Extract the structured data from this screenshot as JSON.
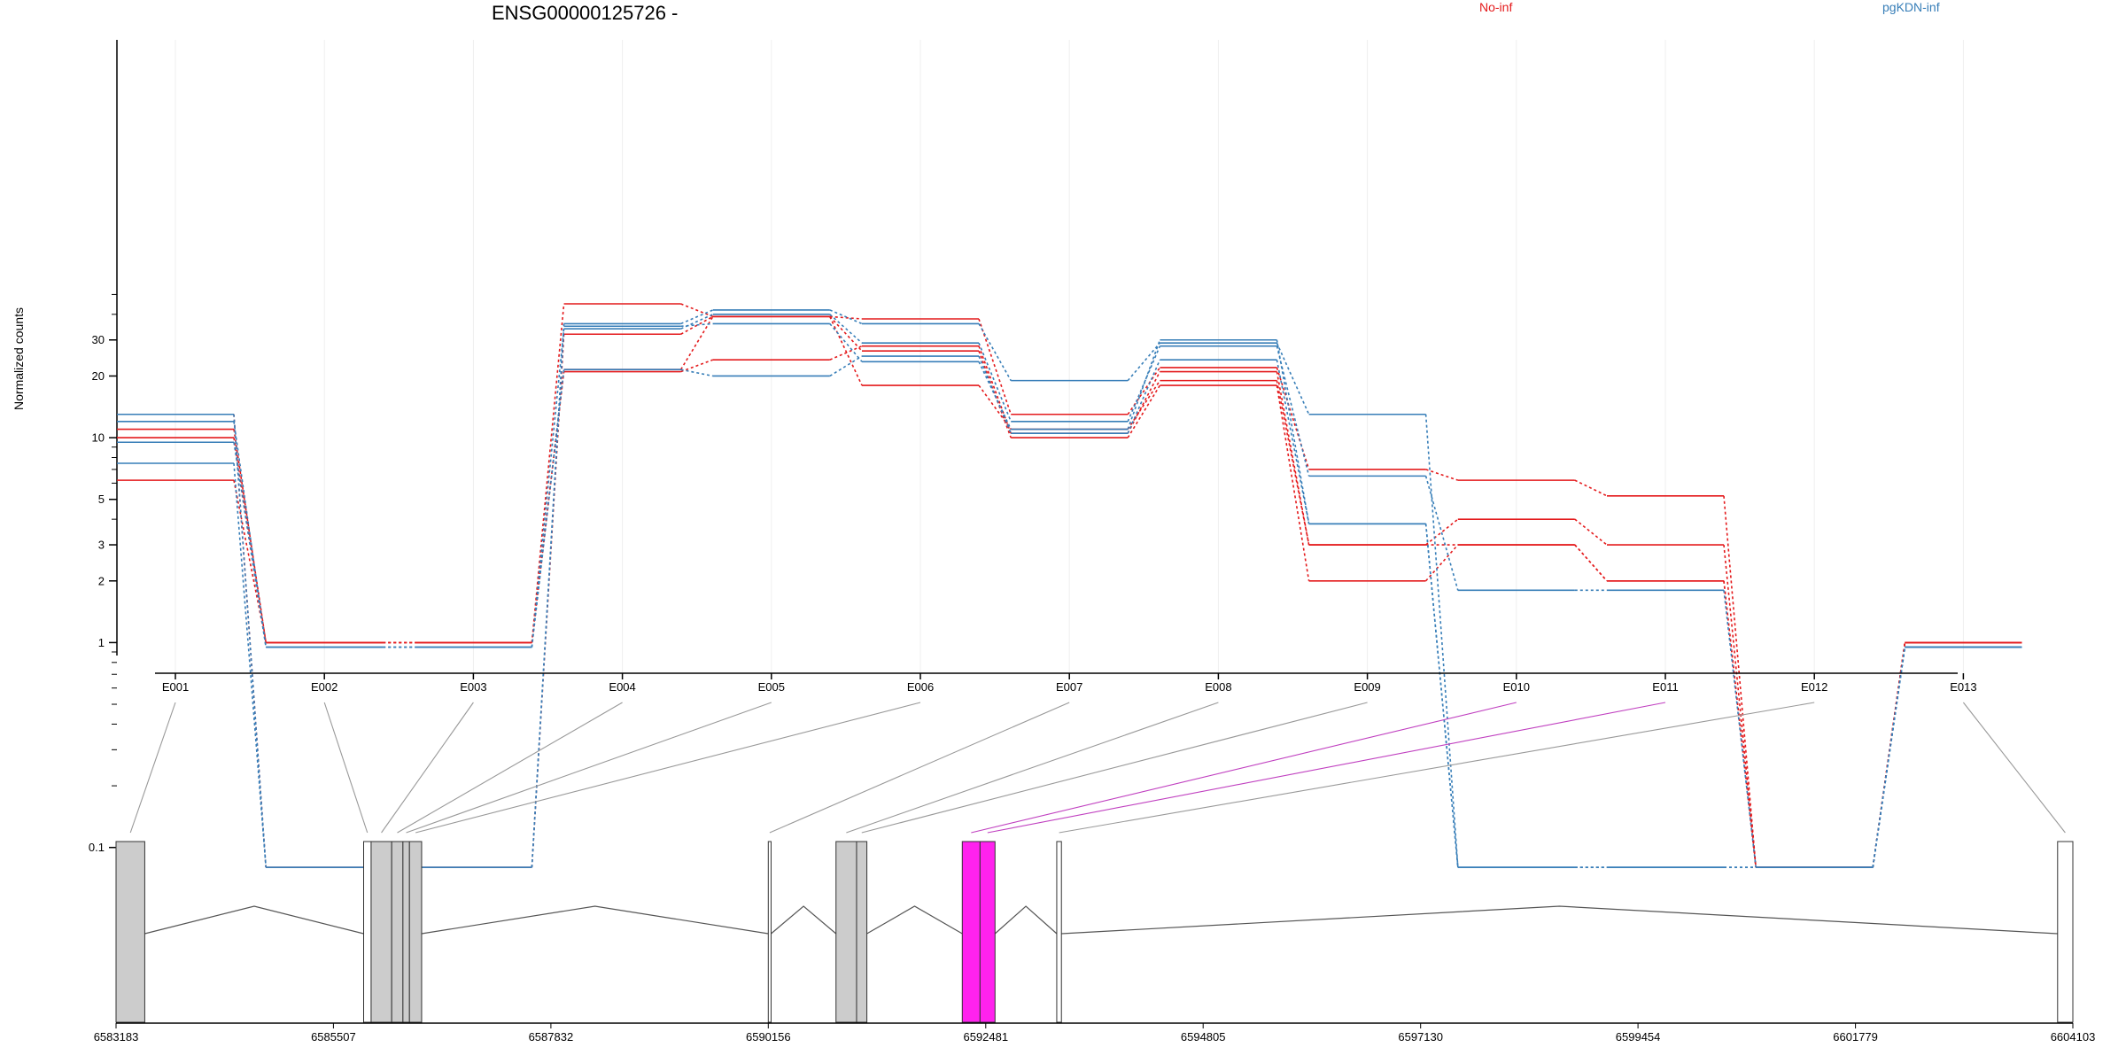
{
  "chart_data": {
    "type": "line",
    "title": "ENSG00000125726 -",
    "ylabel": "Normalized counts",
    "xlabel": "",
    "y_scale": "log",
    "y_ticks": [
      0.1,
      1,
      2,
      3,
      5,
      10,
      20,
      30
    ],
    "y_tick_labels": [
      "0.1",
      "1",
      "2",
      "3",
      "5",
      "10",
      "20",
      "30"
    ],
    "legend_placement": "top-right",
    "categories": [
      "E001",
      "E002",
      "E003",
      "E004",
      "E005",
      "E006",
      "E007",
      "E008",
      "E009",
      "E010",
      "E011",
      "E012",
      "E013"
    ],
    "groups": [
      {
        "name": "No-inf",
        "color": "#e41a1c"
      },
      {
        "name": "pgKDN-inf",
        "color": "#377eb8"
      }
    ],
    "series": [
      {
        "group": "No-inf",
        "values": [
          11,
          1,
          1,
          45,
          39,
          38,
          13,
          22,
          7,
          6.2,
          5.2,
          0.08,
          1
        ]
      },
      {
        "group": "No-inf",
        "values": [
          10,
          1,
          1,
          21,
          24,
          28,
          10.5,
          21,
          3,
          4,
          3,
          0.08,
          1
        ]
      },
      {
        "group": "No-inf",
        "values": [
          6.2,
          1,
          1,
          21.5,
          39,
          26.5,
          10,
          18,
          2,
          3,
          2,
          0.08,
          1
        ]
      },
      {
        "group": "No-inf",
        "values": [
          13,
          0.08,
          0.08,
          32,
          39,
          18,
          11,
          19,
          3,
          3,
          2,
          0.08,
          1
        ]
      },
      {
        "group": "pgKDN-inf",
        "values": [
          13,
          0.08,
          0.08,
          36,
          42,
          36,
          19,
          29,
          13,
          0.08,
          0.08,
          0.08,
          0.95
        ]
      },
      {
        "group": "pgKDN-inf",
        "values": [
          12,
          0.95,
          0.95,
          34,
          40,
          29,
          12,
          28,
          6.5,
          1.8,
          1.8,
          0.08,
          0.95
        ]
      },
      {
        "group": "pgKDN-inf",
        "values": [
          9.5,
          0.95,
          0.95,
          21.5,
          20,
          25,
          10.5,
          24,
          3.8,
          0.08,
          0.08,
          0.08,
          0.95
        ]
      },
      {
        "group": "pgKDN-inf",
        "values": [
          7.5,
          0.08,
          0.08,
          35,
          36,
          23.5,
          11,
          30,
          3.8,
          0.08,
          0.08,
          0.08,
          0.95
        ]
      }
    ],
    "genomic_axis": {
      "tick_labels": [
        "6583183",
        "6585507",
        "6587832",
        "6590156",
        "6592481",
        "6594805",
        "6597130",
        "6599454",
        "6601779",
        "6604103"
      ],
      "range": [
        6583183,
        6604103
      ]
    },
    "exons": [
      {
        "id": "E001",
        "start": 6583183,
        "end": 6583490,
        "fill": "#cccccc"
      },
      {
        "id": "E002",
        "start": 6585830,
        "end": 6585910,
        "fill": "#ffffff"
      },
      {
        "id": "E003",
        "start": 6585910,
        "end": 6586130,
        "fill": "#cccccc"
      },
      {
        "id": "E004",
        "start": 6586130,
        "end": 6586250,
        "fill": "#cccccc"
      },
      {
        "id": "E005",
        "start": 6586250,
        "end": 6586320,
        "fill": "#cccccc"
      },
      {
        "id": "E006",
        "start": 6586320,
        "end": 6586450,
        "fill": "#cccccc"
      },
      {
        "id": "E007",
        "start": 6590156,
        "end": 6590186,
        "fill": "#ffffff"
      },
      {
        "id": "E008",
        "start": 6590880,
        "end": 6591100,
        "fill": "#cccccc"
      },
      {
        "id": "E009",
        "start": 6591100,
        "end": 6591210,
        "fill": "#cccccc"
      },
      {
        "id": "E010",
        "start": 6592230,
        "end": 6592420,
        "fill": "#ff22ee"
      },
      {
        "id": "E011",
        "start": 6592420,
        "end": 6592580,
        "fill": "#ff22ee"
      },
      {
        "id": "E012",
        "start": 6593240,
        "end": 6593290,
        "fill": "#ffffff"
      },
      {
        "id": "E013",
        "start": 6603940,
        "end": 6604103,
        "fill": "#ffffff"
      }
    ],
    "highlight_color": "#c040c0"
  }
}
